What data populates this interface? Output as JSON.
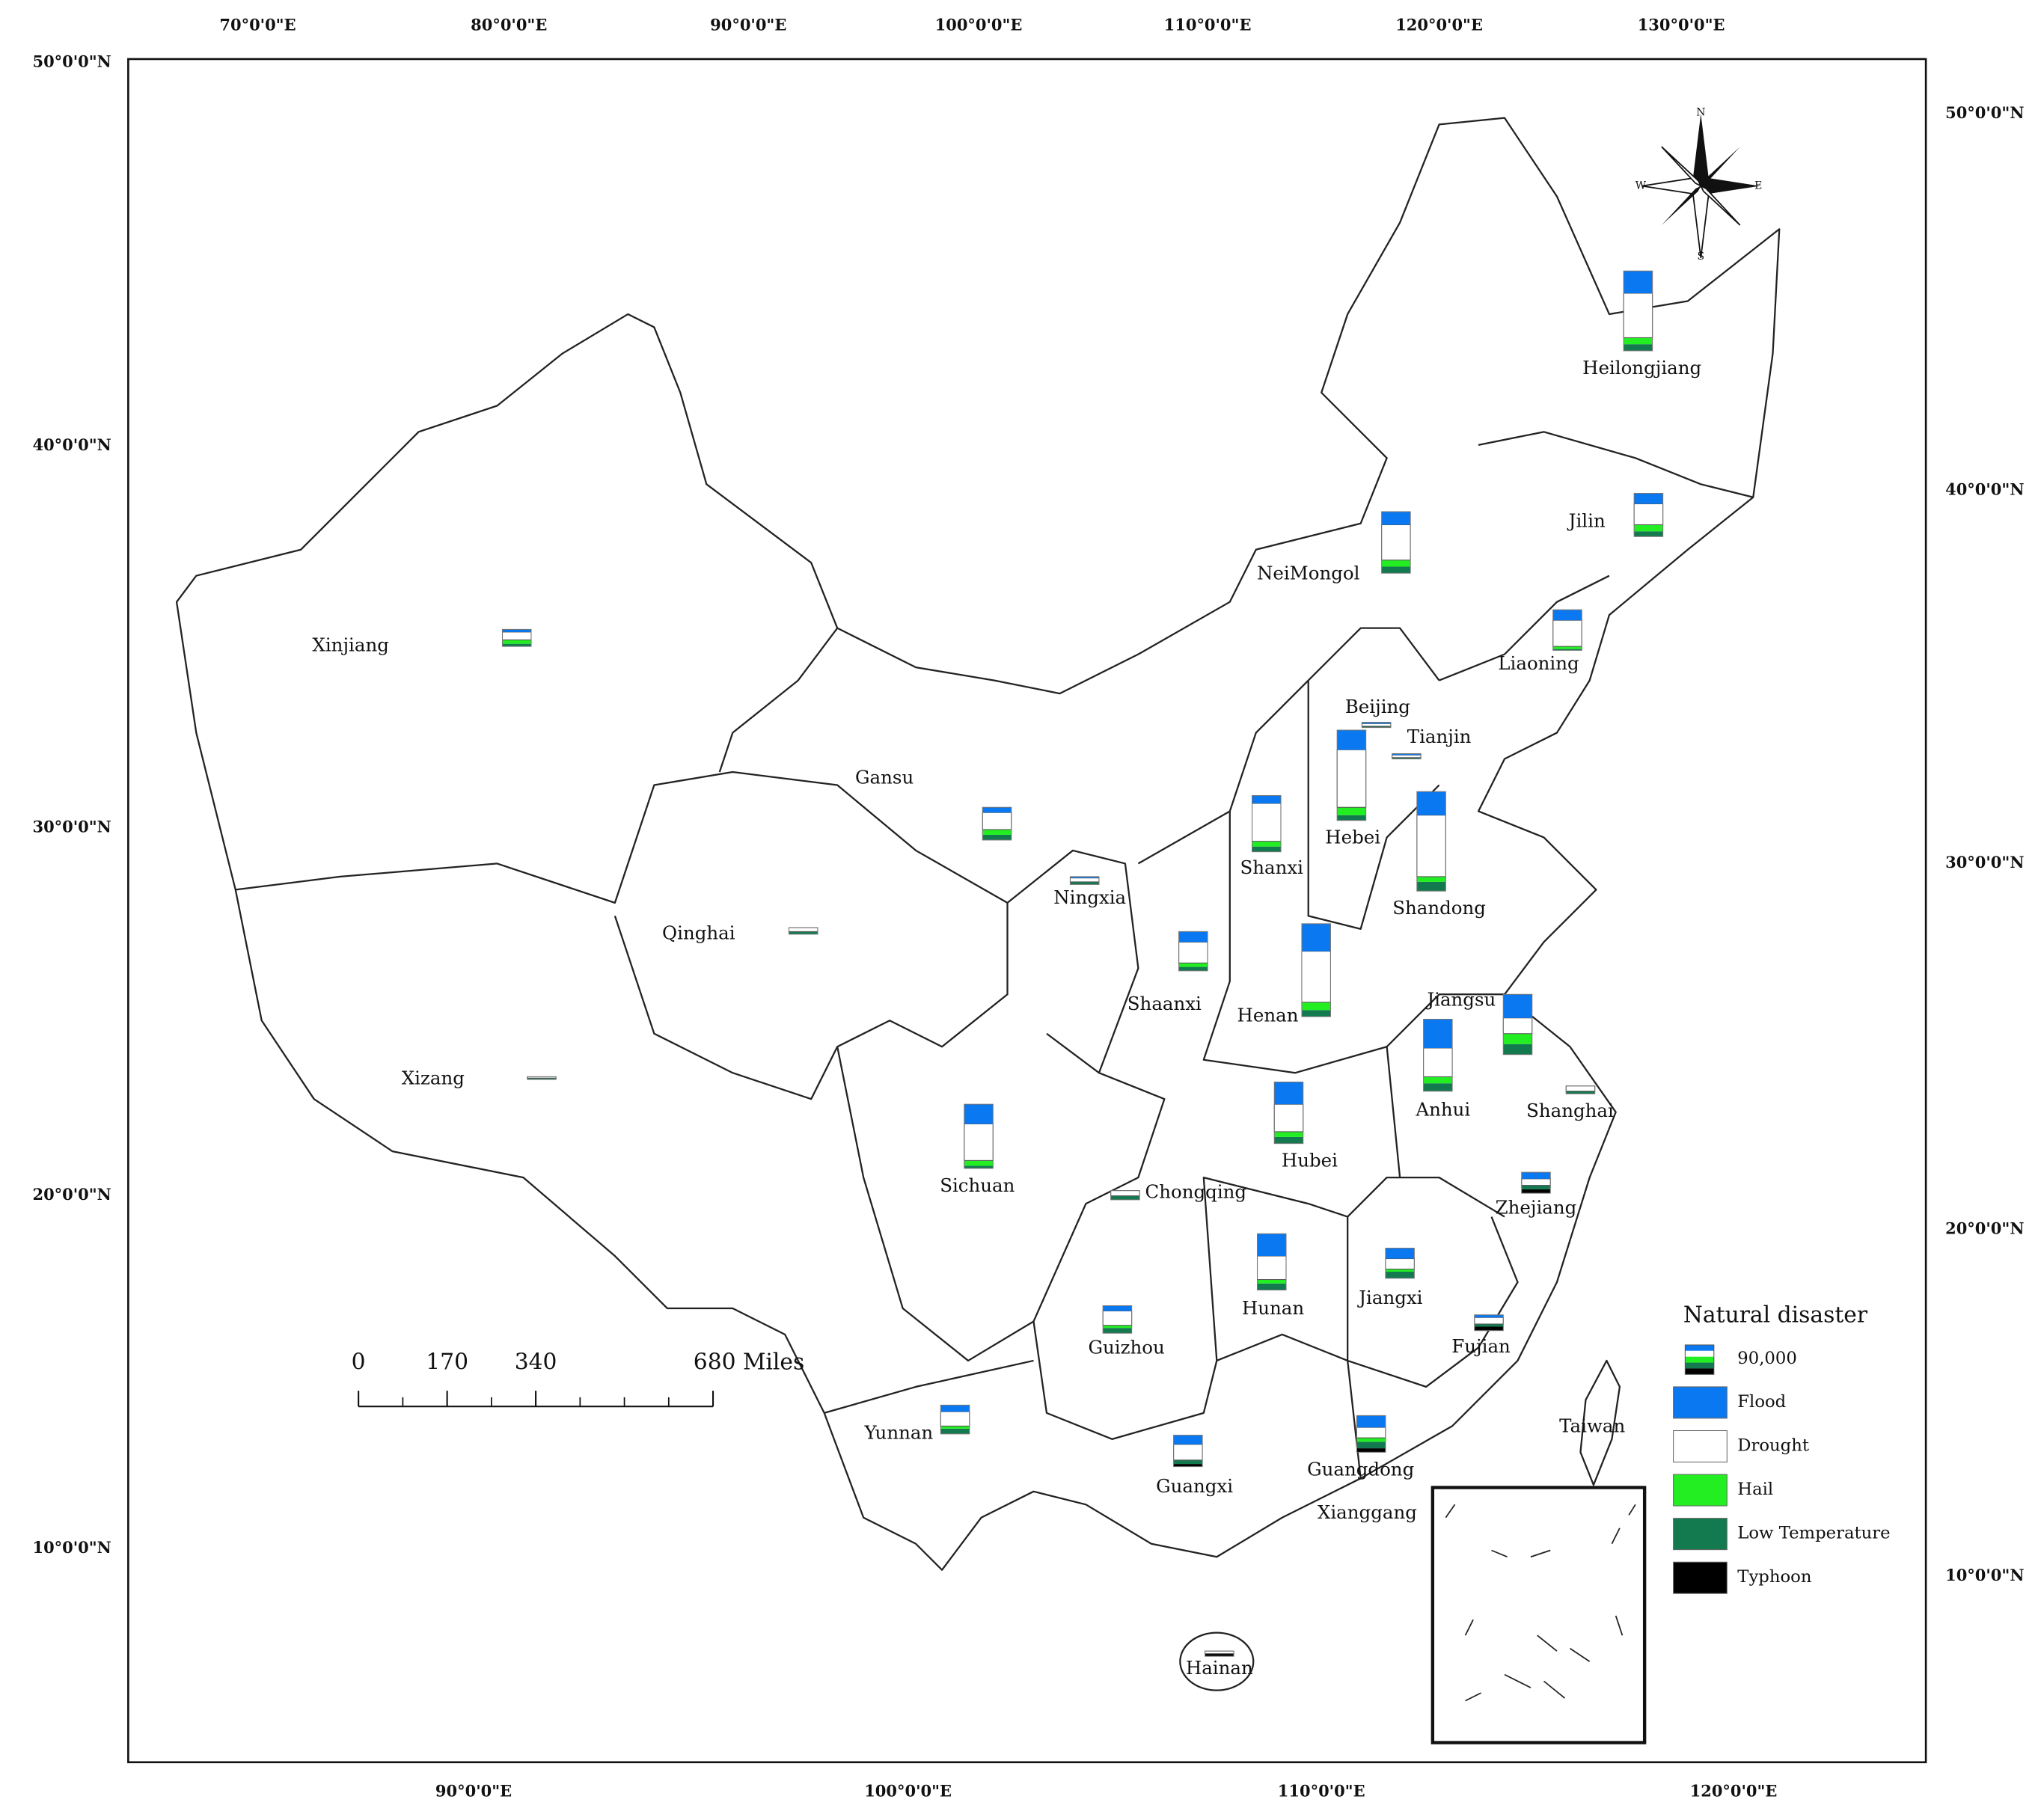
{
  "axes": {
    "top": [
      "70°0'0\"E",
      "80°0'0\"E",
      "90°0'0\"E",
      "100°0'0\"E",
      "110°0'0\"E",
      "120°0'0\"E",
      "130°0'0\"E"
    ],
    "bottom": [
      "90°0'0\"E",
      "100°0'0\"E",
      "110°0'0\"E",
      "120°0'0\"E"
    ],
    "left": [
      "50°0'0\"N",
      "40°0'0\"N",
      "30°0'0\"N",
      "20°0'0\"N",
      "10°0'0\"N"
    ],
    "right": [
      "50°0'0\"N",
      "40°0'0\"N",
      "30°0'0\"N",
      "20°0'0\"N",
      "10°0'0\"N"
    ]
  },
  "compass": [
    "N",
    "E",
    "S",
    "W"
  ],
  "scale_bar": {
    "ticks": [
      0,
      170,
      340,
      {
        "value": 680,
        "label": "680 Miles"
      }
    ]
  },
  "legend": {
    "title": "Natural disaster",
    "sample": {
      "value": 90000,
      "label": "90,000"
    },
    "items": [
      {
        "name": "Flood",
        "color": "#0a78f0"
      },
      {
        "name": "Drought",
        "color": "#ffffff"
      },
      {
        "name": "Hail",
        "color": "#22ee22"
      },
      {
        "name": "Low Temperature",
        "color": "#127a4e"
      },
      {
        "name": "Typhoon",
        "color": "#000000"
      }
    ]
  },
  "provinces": [
    {
      "name": "Heilongjiang",
      "values": [
        68000,
        136000,
        20000,
        20000,
        0
      ]
    },
    {
      "name": "Jilin",
      "values": [
        32000,
        64000,
        20000,
        16000,
        0
      ]
    },
    {
      "name": "NeiMongol",
      "values": [
        40000,
        108000,
        20000,
        20000,
        0
      ]
    },
    {
      "name": "Liaoning",
      "values": [
        32000,
        80000,
        8000,
        4000,
        0
      ]
    },
    {
      "name": "Beijing",
      "values": [
        4000,
        8000,
        0,
        4000,
        0
      ]
    },
    {
      "name": "Tianjin",
      "values": [
        4000,
        8000,
        0,
        4000,
        0
      ]
    },
    {
      "name": "Hebei",
      "values": [
        60000,
        176000,
        24000,
        16000,
        0
      ]
    },
    {
      "name": "Shandong",
      "values": [
        72000,
        188000,
        16000,
        28000,
        0
      ]
    },
    {
      "name": "Shanxi",
      "values": [
        24000,
        116000,
        16000,
        16000,
        0
      ]
    },
    {
      "name": "Henan",
      "values": [
        84000,
        156000,
        24000,
        20000,
        0
      ]
    },
    {
      "name": "Shaanxi",
      "values": [
        32000,
        64000,
        12000,
        12000,
        0
      ]
    },
    {
      "name": "Ningxia",
      "values": [
        4000,
        12000,
        0,
        8000,
        0
      ]
    },
    {
      "name": "Gansu",
      "values": [
        16000,
        52000,
        16000,
        16000,
        0
      ]
    },
    {
      "name": "Qinghai",
      "values": [
        0,
        12000,
        0,
        8000,
        0
      ]
    },
    {
      "name": "Xizang",
      "values": [
        0,
        4000,
        0,
        4000,
        0
      ]
    },
    {
      "name": "Xinjiang",
      "values": [
        8000,
        24000,
        12000,
        8000,
        0
      ]
    },
    {
      "name": "Jiangsu",
      "values": [
        72000,
        48000,
        32000,
        32000,
        0
      ]
    },
    {
      "name": "Anhui",
      "values": [
        88000,
        88000,
        20000,
        24000,
        0
      ]
    },
    {
      "name": "Shanghai",
      "values": [
        0,
        16000,
        0,
        8000,
        0
      ]
    },
    {
      "name": "Hubei",
      "values": [
        68000,
        84000,
        16000,
        20000,
        0
      ]
    },
    {
      "name": "Sichuan",
      "values": [
        60000,
        112000,
        16000,
        8000,
        0
      ]
    },
    {
      "name": "Chongqing",
      "values": [
        0,
        16000,
        0,
        12000,
        0
      ]
    },
    {
      "name": "Zhejiang",
      "values": [
        20000,
        20000,
        0,
        12000,
        12000
      ]
    },
    {
      "name": "Hunan",
      "values": [
        68000,
        72000,
        12000,
        20000,
        0
      ]
    },
    {
      "name": "Jiangxi",
      "values": [
        32000,
        32000,
        8000,
        20000,
        0
      ]
    },
    {
      "name": "Fujian",
      "values": [
        8000,
        20000,
        0,
        8000,
        12000
      ]
    },
    {
      "name": "Guizhou",
      "values": [
        16000,
        44000,
        8000,
        16000,
        0
      ]
    },
    {
      "name": "Yunnan",
      "values": [
        20000,
        44000,
        8000,
        16000,
        0
      ]
    },
    {
      "name": "Guangxi",
      "values": [
        28000,
        48000,
        0,
        12000,
        8000
      ]
    },
    {
      "name": "Guangdong",
      "values": [
        36000,
        32000,
        12000,
        20000,
        12000
      ]
    },
    {
      "name": "Hainan",
      "values": [
        0,
        8000,
        0,
        0,
        8000
      ]
    }
  ],
  "other_labels": [
    "Taiwan",
    "Xianggang"
  ]
}
